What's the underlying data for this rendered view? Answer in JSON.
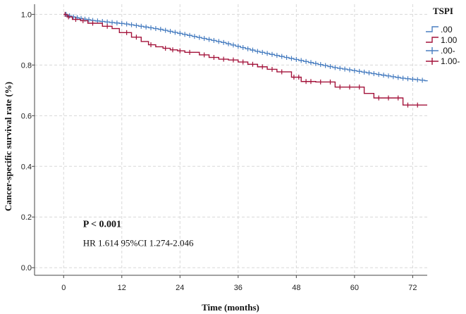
{
  "chart_data": {
    "type": "line",
    "chart_style": "kaplan-meier step curve with censor marks",
    "xlabel": "Time (months)",
    "ylabel": "Cancer-specific survival rate (%)",
    "xlim": [
      -6,
      75
    ],
    "ylim": [
      -0.03,
      1.04
    ],
    "x_ticks": [
      0,
      12,
      24,
      36,
      48,
      60,
      72
    ],
    "y_ticks": [
      0.0,
      0.2,
      0.4,
      0.6,
      0.8,
      1.0
    ],
    "x_tick_labels": [
      "0",
      "12",
      "24",
      "36",
      "48",
      "60",
      "72"
    ],
    "y_tick_labels": [
      "0.0",
      "0.2",
      "0.4",
      "0.6",
      "0.8",
      "1.0"
    ],
    "grid": true,
    "legend": {
      "title": "TSPI",
      "placement": "top-right",
      "entries": [
        {
          "label": ".00",
          "series": 0,
          "kind": "step",
          "color": "#4a7fc1"
        },
        {
          "label": "1.00",
          "series": 1,
          "kind": "step",
          "color": "#a3123a"
        },
        {
          "label": ".00-",
          "series": 0,
          "kind": "censor",
          "color": "#4a7fc1"
        },
        {
          "label": "1.00-",
          "series": 1,
          "kind": "censor",
          "color": "#a3123a"
        }
      ]
    },
    "series": [
      {
        "name": ".00",
        "color": "#4a7fc1",
        "x": [
          0,
          0.8,
          1.6,
          2.4,
          3.2,
          4,
          4.8,
          5.6,
          6.5,
          7.5,
          8.5,
          9.5,
          10.5,
          11.5,
          12.5,
          13.5,
          14.5,
          15.5,
          16.5,
          17.5,
          18.5,
          19.5,
          20.5,
          21.5,
          22.5,
          23.5,
          24.5,
          25.5,
          26.5,
          27.5,
          28.5,
          29.5,
          30.5,
          31.5,
          32.5,
          33.5,
          34.5,
          35.5,
          36.5,
          37.5,
          38.5,
          39.5,
          40.5,
          41.5,
          42.5,
          43.5,
          44.5,
          45.5,
          46.5,
          47.5,
          48.5,
          49.5,
          50.5,
          51.5,
          52.5,
          53.5,
          54.5,
          55.5,
          56.5,
          57.5,
          58.5,
          59.5,
          60.5,
          61.5,
          62.5,
          63.5,
          64.5,
          65.5,
          66.5,
          67.5,
          68.5,
          69.5,
          70.5,
          71.5,
          72.5,
          73.5,
          74.5,
          75
        ],
        "y": [
          1.0,
          0.994,
          0.99,
          0.987,
          0.984,
          0.981,
          0.979,
          0.976,
          0.974,
          0.972,
          0.97,
          0.968,
          0.966,
          0.964,
          0.962,
          0.959,
          0.956,
          0.953,
          0.95,
          0.947,
          0.944,
          0.941,
          0.937,
          0.933,
          0.929,
          0.925,
          0.921,
          0.917,
          0.913,
          0.909,
          0.905,
          0.901,
          0.897,
          0.893,
          0.889,
          0.884,
          0.879,
          0.874,
          0.869,
          0.864,
          0.859,
          0.854,
          0.85,
          0.846,
          0.842,
          0.838,
          0.834,
          0.83,
          0.826,
          0.822,
          0.818,
          0.814,
          0.81,
          0.806,
          0.802,
          0.798,
          0.794,
          0.79,
          0.787,
          0.784,
          0.781,
          0.778,
          0.775,
          0.772,
          0.769,
          0.766,
          0.763,
          0.76,
          0.757,
          0.754,
          0.751,
          0.748,
          0.746,
          0.744,
          0.742,
          0.74,
          0.738,
          0.736
        ],
        "censor_x": [
          0.5,
          1.2,
          2,
          2.8,
          3.6,
          4.4,
          5.2,
          6,
          7,
          8,
          9,
          10,
          11,
          12,
          13,
          14,
          15,
          16,
          17,
          18,
          19,
          20,
          21,
          22,
          23,
          24,
          25,
          26,
          27,
          28,
          29,
          30,
          31,
          32,
          33,
          34,
          35,
          36,
          37,
          38,
          39,
          40,
          41,
          42,
          43,
          44,
          45,
          46,
          47,
          48,
          49,
          50,
          51,
          52,
          53,
          54,
          55,
          56,
          57,
          58,
          59,
          60,
          61,
          62,
          63,
          64,
          65,
          66,
          67,
          68,
          69,
          70,
          71,
          72,
          73,
          74
        ]
      },
      {
        "name": "1.00",
        "color": "#a3123a",
        "x": [
          0,
          0.7,
          1.8,
          3.5,
          5,
          8,
          10,
          11.5,
          14,
          16,
          17.5,
          19,
          20.5,
          22,
          23.5,
          25,
          28,
          30,
          32,
          34,
          36,
          38,
          40,
          42,
          44,
          47,
          49,
          52,
          56,
          62,
          64,
          70,
          75
        ],
        "y": [
          1.0,
          0.99,
          0.98,
          0.975,
          0.965,
          0.953,
          0.944,
          0.928,
          0.91,
          0.893,
          0.88,
          0.872,
          0.866,
          0.86,
          0.856,
          0.85,
          0.84,
          0.83,
          0.823,
          0.82,
          0.812,
          0.803,
          0.793,
          0.783,
          0.773,
          0.752,
          0.735,
          0.733,
          0.713,
          0.688,
          0.67,
          0.642,
          0.642
        ],
        "censor_x": [
          0.3,
          1,
          2.5,
          4,
          6,
          9,
          13,
          15,
          18,
          21,
          22.5,
          24,
          26,
          29,
          31,
          33,
          35,
          37,
          39,
          41,
          43,
          45,
          47.5,
          48.5,
          50,
          51,
          53,
          55,
          57,
          59,
          61,
          65,
          67,
          69,
          71,
          73
        ]
      }
    ],
    "annotations": [
      {
        "text": "P < 0.001",
        "x": 4,
        "y": 0.16,
        "bold": true
      },
      {
        "text": "HR 1.614 95%CI 1.274-2.046",
        "x": 4,
        "y": 0.085,
        "bold": false
      }
    ]
  }
}
